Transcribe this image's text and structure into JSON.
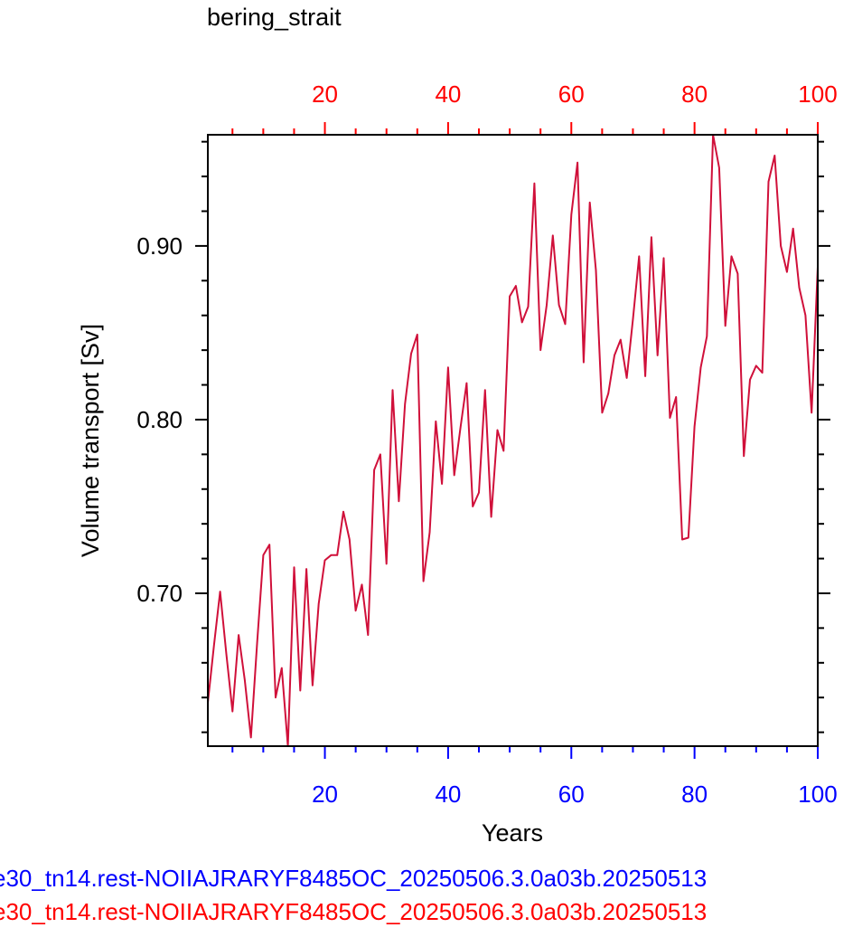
{
  "chart_data": {
    "type": "line",
    "title": "bering_strait",
    "xlabel": "Years",
    "ylabel": "Volume transport [Sv]",
    "xlim": [
      1,
      100
    ],
    "ylim": [
      0.612,
      0.964
    ],
    "x_ticks": [
      20,
      40,
      60,
      80,
      100
    ],
    "x_tick_labels": [
      "20",
      "40",
      "60",
      "80",
      "100"
    ],
    "y_ticks": [
      0.7,
      0.8,
      0.9
    ],
    "y_tick_labels": [
      "0.70",
      "0.80",
      "0.90"
    ],
    "grid": false,
    "series": [
      {
        "color": "#d0103a",
        "x": [
          1,
          2,
          3,
          4,
          5,
          6,
          7,
          8,
          9,
          10,
          11,
          12,
          13,
          14,
          15,
          16,
          17,
          18,
          19,
          20,
          21,
          22,
          23,
          24,
          25,
          26,
          27,
          28,
          29,
          30,
          31,
          32,
          33,
          34,
          35,
          36,
          37,
          38,
          39,
          40,
          41,
          42,
          43,
          44,
          45,
          46,
          47,
          48,
          49,
          50,
          51,
          52,
          53,
          54,
          55,
          56,
          57,
          58,
          59,
          60,
          61,
          62,
          63,
          64,
          65,
          66,
          67,
          68,
          69,
          70,
          71,
          72,
          73,
          74,
          75,
          76,
          77,
          78,
          79,
          80,
          81,
          82,
          83,
          84,
          85,
          86,
          87,
          88,
          89,
          90,
          91,
          92,
          93,
          94,
          95,
          96,
          97,
          98,
          99,
          100
        ],
        "y": [
          0.637,
          0.67,
          0.701,
          0.665,
          0.632,
          0.676,
          0.65,
          0.617,
          0.671,
          0.722,
          0.728,
          0.64,
          0.657,
          0.612,
          0.715,
          0.644,
          0.714,
          0.647,
          0.694,
          0.719,
          0.722,
          0.722,
          0.747,
          0.731,
          0.69,
          0.705,
          0.676,
          0.771,
          0.78,
          0.717,
          0.817,
          0.753,
          0.809,
          0.838,
          0.849,
          0.707,
          0.735,
          0.799,
          0.763,
          0.83,
          0.768,
          0.795,
          0.821,
          0.75,
          0.758,
          0.817,
          0.744,
          0.794,
          0.782,
          0.871,
          0.877,
          0.856,
          0.865,
          0.936,
          0.84,
          0.866,
          0.906,
          0.866,
          0.855,
          0.918,
          0.948,
          0.833,
          0.925,
          0.886,
          0.804,
          0.815,
          0.837,
          0.846,
          0.824,
          0.858,
          0.894,
          0.825,
          0.905,
          0.837,
          0.893,
          0.801,
          0.813,
          0.731,
          0.732,
          0.796,
          0.83,
          0.848,
          0.964,
          0.945,
          0.854,
          0.894,
          0.884,
          0.779,
          0.823,
          0.831,
          0.827,
          0.937,
          0.952,
          0.9,
          0.885,
          0.91,
          0.876,
          0.86,
          0.804,
          0.888
        ]
      }
    ]
  },
  "captions": [
    {
      "text": "e30_tn14.rest-NOIIAJRARYF8485OC_20250506.3.0a03b.20250513",
      "color": "#0000ff"
    },
    {
      "text": "e30_tn14.rest-NOIIAJRARYF8485OC_20250506.3.0a03b.20250513",
      "color": "#ff0000"
    }
  ],
  "colors": {
    "bottom_axis": "#0000ff",
    "top_axis": "#ff0000",
    "frame": "#000000",
    "line": "#d0103a"
  }
}
